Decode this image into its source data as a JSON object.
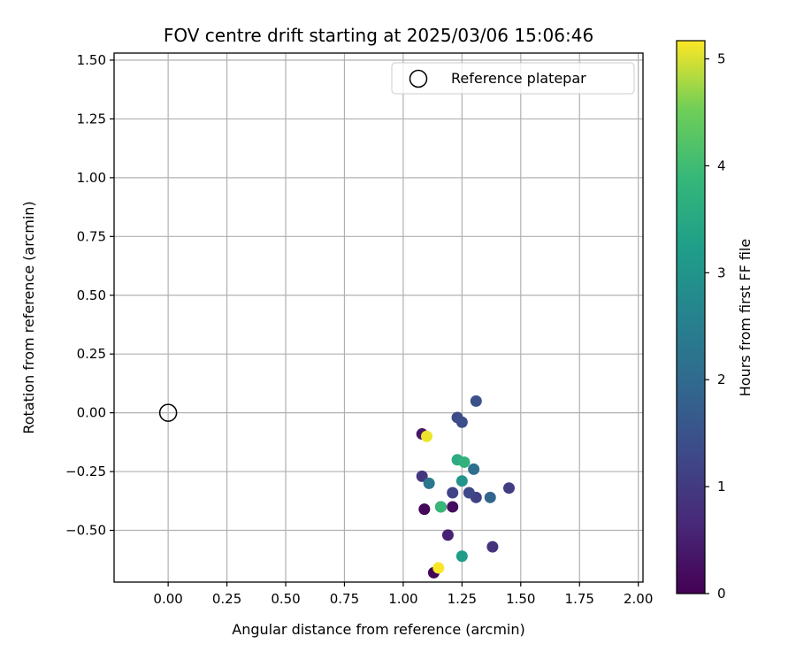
{
  "chart_data": {
    "type": "scatter",
    "title": "FOV centre drift starting at 2025/03/06 15:06:46",
    "xlabel": "Angular distance from reference (arcmin)",
    "ylabel": "Rotation from reference (arcmin)",
    "xlim": [
      -0.23,
      2.02
    ],
    "ylim": [
      -0.72,
      1.53
    ],
    "x_ticks": [
      "0.00",
      "0.25",
      "0.50",
      "0.75",
      "1.00",
      "1.25",
      "1.50",
      "1.75",
      "2.00"
    ],
    "x_tick_values": [
      0,
      0.25,
      0.5,
      0.75,
      1.0,
      1.25,
      1.5,
      1.75,
      2.0
    ],
    "y_ticks": [
      "−0.50",
      "−0.25",
      "0.00",
      "0.25",
      "0.50",
      "0.75",
      "1.00",
      "1.25",
      "1.50"
    ],
    "y_tick_values": [
      -0.5,
      -0.25,
      0,
      0.25,
      0.5,
      0.75,
      1.0,
      1.25,
      1.5
    ],
    "grid": true,
    "legend": {
      "placement": "top-right",
      "entries": [
        "Reference platepar"
      ]
    },
    "reference_point": {
      "x": 0.0,
      "y": 0.0,
      "marker": "open-circle"
    },
    "colorbar": {
      "label": "Hours from first FF file",
      "colormap": "viridis",
      "range": [
        0,
        5.17
      ],
      "ticks": [
        "0",
        "1",
        "2",
        "3",
        "4",
        "5"
      ],
      "tick_values": [
        0,
        1,
        2,
        3,
        4,
        5
      ]
    },
    "points": [
      {
        "x": 1.13,
        "y": -0.68,
        "hours": 0.05
      },
      {
        "x": 1.09,
        "y": -0.41,
        "hours": 0.1
      },
      {
        "x": 1.16,
        "y": -0.4,
        "hours": 0.15
      },
      {
        "x": 1.21,
        "y": -0.4,
        "hours": 0.2
      },
      {
        "x": 1.08,
        "y": -0.09,
        "hours": 0.35
      },
      {
        "x": 1.19,
        "y": -0.52,
        "hours": 0.55
      },
      {
        "x": 1.38,
        "y": -0.57,
        "hours": 0.85
      },
      {
        "x": 1.08,
        "y": -0.27,
        "hours": 0.95
      },
      {
        "x": 1.45,
        "y": -0.32,
        "hours": 1.05
      },
      {
        "x": 1.31,
        "y": -0.36,
        "hours": 1.15
      },
      {
        "x": 1.21,
        "y": -0.34,
        "hours": 1.2
      },
      {
        "x": 1.28,
        "y": -0.34,
        "hours": 1.3
      },
      {
        "x": 1.23,
        "y": -0.02,
        "hours": 1.35
      },
      {
        "x": 1.25,
        "y": -0.04,
        "hours": 1.4
      },
      {
        "x": 1.31,
        "y": 0.05,
        "hours": 1.45
      },
      {
        "x": 1.37,
        "y": -0.36,
        "hours": 1.9
      },
      {
        "x": 1.3,
        "y": -0.24,
        "hours": 2.1
      },
      {
        "x": 1.11,
        "y": -0.3,
        "hours": 2.3
      },
      {
        "x": 1.25,
        "y": -0.29,
        "hours": 3.0
      },
      {
        "x": 1.25,
        "y": -0.61,
        "hours": 3.2
      },
      {
        "x": 1.23,
        "y": -0.2,
        "hours": 3.6
      },
      {
        "x": 1.26,
        "y": -0.21,
        "hours": 3.75
      },
      {
        "x": 1.16,
        "y": -0.4,
        "hours": 3.9
      },
      {
        "x": 1.1,
        "y": -0.1,
        "hours": 5.1
      },
      {
        "x": 1.15,
        "y": -0.66,
        "hours": 5.15
      }
    ]
  }
}
